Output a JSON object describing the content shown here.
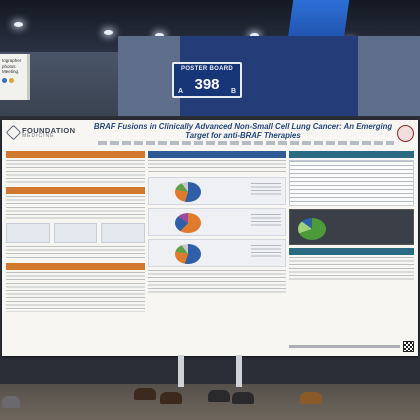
{
  "venue": {
    "side_banner_text": "tographer\nphotos\nMeeting."
  },
  "board": {
    "label": "POSTER BOARD",
    "number": "398",
    "side_left": "A",
    "side_right": "B"
  },
  "poster": {
    "logo_name": "FOUNDATION",
    "logo_sub": "MEDICINE",
    "title": "BRAF Fusions in Clinically Advanced Non-Small Cell Lung Cancer: An Emerging Target for anti-BRAF Therapies",
    "colors": {
      "title": "#24467e",
      "left_headers": "#d2782c",
      "mid_headers": "#2f5b95",
      "right_headers": "#2a6a82"
    }
  }
}
